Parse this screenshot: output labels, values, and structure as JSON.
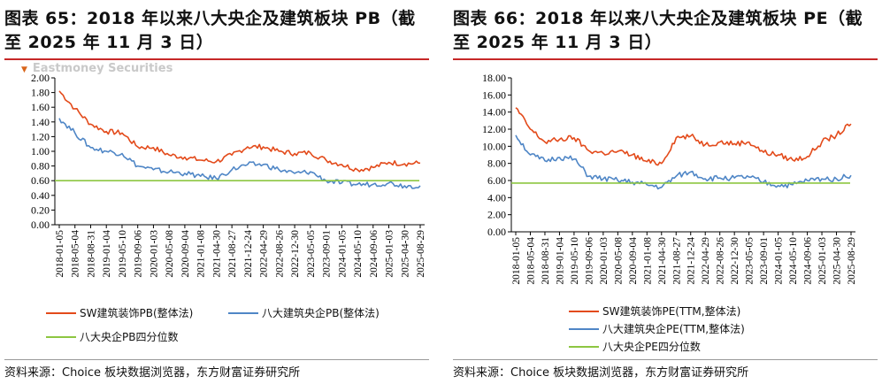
{
  "watermark": "Eastmoney Securities",
  "source_note": "资料来源：Choice 板块数据浏览器，东方财富证券研究所",
  "colors": {
    "sw": "#e34a1a",
    "central": "#4f86c6",
    "quartile": "#8dc641",
    "title_rule": "#c62828"
  },
  "x_ticks": [
    "2018-01-05",
    "2018-05-04",
    "2018-08-31",
    "2019-01-04",
    "2019-05-10",
    "2019-09-06",
    "2020-01-03",
    "2020-05-08",
    "2020-09-04",
    "2021-01-08",
    "2021-04-30",
    "2021-08-27",
    "2021-12-24",
    "2022-04-29",
    "2022-08-26",
    "2022-12-30",
    "2023-05-05",
    "2023-09-01",
    "2024-01-05",
    "2024-05-10",
    "2024-09-06",
    "2025-01-03",
    "2025-04-30",
    "2025-08-29"
  ],
  "chart_data": [
    {
      "type": "line",
      "title": "图表 65：2018 年以来八大央企及建筑板块 PB（截至 2025 年 11 月 3 日）",
      "ylim": [
        0,
        2.0
      ],
      "y_ticks": [
        "0.00",
        "0.20",
        "0.40",
        "0.60",
        "0.80",
        "1.00",
        "1.20",
        "1.40",
        "1.60",
        "1.80",
        "2.00"
      ],
      "legend": {
        "sw": "SW建筑装饰PB(整体法)",
        "central": "八大建筑央企PB(整体法)",
        "quartile": "八大央企PB四分位数"
      },
      "series": [
        {
          "name": "SW建筑装饰PB(整体法)",
          "values": [
            1.82,
            1.58,
            1.37,
            1.27,
            1.25,
            1.06,
            1.05,
            0.95,
            0.92,
            0.88,
            0.86,
            0.95,
            1.06,
            1.06,
            1.0,
            0.97,
            0.98,
            0.88,
            0.82,
            0.75,
            0.78,
            0.85,
            0.83,
            0.84
          ]
        },
        {
          "name": "八大建筑央企PB(整体法)",
          "values": [
            1.45,
            1.25,
            1.05,
            1.0,
            0.97,
            0.8,
            0.75,
            0.72,
            0.7,
            0.66,
            0.63,
            0.75,
            0.82,
            0.82,
            0.75,
            0.7,
            0.72,
            0.6,
            0.57,
            0.55,
            0.55,
            0.57,
            0.53,
            0.53
          ]
        },
        {
          "name": "八大央企PB四分位数",
          "values": [
            0.6,
            0.6,
            0.6,
            0.6,
            0.6,
            0.6,
            0.6,
            0.6,
            0.6,
            0.6,
            0.6,
            0.6,
            0.6,
            0.6,
            0.6,
            0.6,
            0.6,
            0.6,
            0.6,
            0.6,
            0.6,
            0.6,
            0.6,
            0.6
          ]
        }
      ]
    },
    {
      "type": "line",
      "title": "图表 66：2018 年以来八大央企及建筑板块 PE（截至 2025 年 11 月 3 日）",
      "ylim": [
        0,
        18.0
      ],
      "y_ticks": [
        "0.00",
        "2.00",
        "4.00",
        "6.00",
        "8.00",
        "10.00",
        "12.00",
        "14.00",
        "16.00",
        "18.00"
      ],
      "legend": {
        "sw": "SW建筑装饰PE(TTM,整体法)",
        "central": "八大建筑央企PE(TTM,整体法)",
        "quartile": "八大央企PE四分位数"
      },
      "series": [
        {
          "name": "SW建筑装饰PE(TTM,整体法)",
          "values": [
            14.5,
            12.0,
            10.5,
            10.8,
            11.0,
            9.5,
            9.2,
            9.4,
            9.0,
            8.2,
            8.0,
            11.0,
            11.2,
            10.2,
            10.5,
            10.3,
            10.5,
            9.3,
            9.0,
            8.4,
            8.8,
            10.5,
            11.3,
            12.6
          ]
        },
        {
          "name": "八大建筑央企PE(TTM,整体法)",
          "values": [
            11.3,
            9.0,
            8.3,
            8.7,
            8.5,
            6.5,
            6.2,
            6.0,
            5.8,
            5.5,
            5.2,
            6.5,
            7.0,
            6.2,
            6.3,
            6.3,
            6.4,
            5.8,
            5.4,
            5.5,
            6.0,
            6.2,
            6.2,
            6.6
          ]
        },
        {
          "name": "八大央企PE四分位数",
          "values": [
            5.7,
            5.7,
            5.7,
            5.7,
            5.7,
            5.7,
            5.7,
            5.7,
            5.7,
            5.7,
            5.7,
            5.7,
            5.7,
            5.7,
            5.7,
            5.7,
            5.7,
            5.7,
            5.7,
            5.7,
            5.7,
            5.7,
            5.7,
            5.7
          ]
        }
      ]
    }
  ]
}
